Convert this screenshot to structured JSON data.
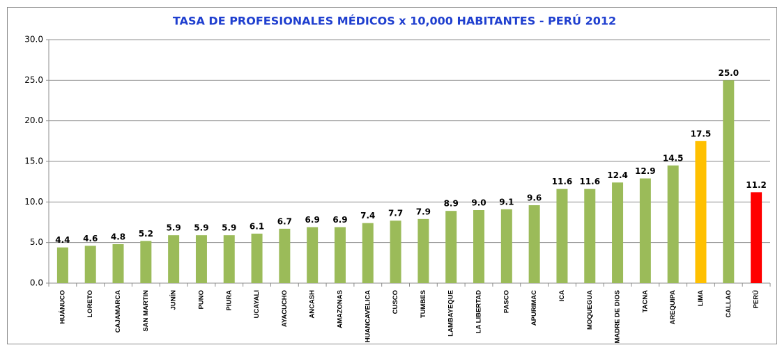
{
  "chart_data": {
    "type": "bar",
    "title": "TASA DE PROFESIONALES MÉDICOS x 10,000 HABITANTES - PERÚ 2012",
    "categories": [
      "HUÁNUCO",
      "LORETO",
      "CAJAMARCA",
      "SAN MARTIN",
      "JUNÍN",
      "PUNO",
      "PIURA",
      "UCAYALI",
      "AYACUCHO",
      "ANCASH",
      "AMAZONAS",
      "HUANCAVELICA",
      "CUSCO",
      "TUMBES",
      "LAMBAYEQUE",
      "LA LIBERTAD",
      "PASCO",
      "APURIMAC",
      "ICA",
      "MOQUEGUA",
      "MADRE DE DIOS",
      "TACNA",
      "AREQUIPA",
      "LIMA",
      "CALLAO",
      "PERÚ"
    ],
    "values": [
      4.4,
      4.6,
      4.8,
      5.2,
      5.9,
      5.9,
      5.9,
      6.1,
      6.7,
      6.9,
      6.9,
      7.4,
      7.7,
      7.9,
      8.9,
      9.0,
      9.1,
      9.6,
      11.6,
      11.6,
      12.4,
      12.9,
      14.5,
      17.5,
      25.0,
      11.2
    ],
    "value_labels": [
      "4.4",
      "4.6",
      "4.8",
      "5.2",
      "5.9",
      "5.9",
      "5.9",
      "6.1",
      "6.7",
      "6.9",
      "6.9",
      "7.4",
      "7.7",
      "7.9",
      "8.9",
      "9.0",
      "9.1",
      "9.6",
      "11.6",
      "11.6",
      "12.4",
      "12.9",
      "14.5",
      "17.5",
      "25.0",
      "11.2"
    ],
    "colors": [
      "#9bbb59",
      "#9bbb59",
      "#9bbb59",
      "#9bbb59",
      "#9bbb59",
      "#9bbb59",
      "#9bbb59",
      "#9bbb59",
      "#9bbb59",
      "#9bbb59",
      "#9bbb59",
      "#9bbb59",
      "#9bbb59",
      "#9bbb59",
      "#9bbb59",
      "#9bbb59",
      "#9bbb59",
      "#9bbb59",
      "#9bbb59",
      "#9bbb59",
      "#9bbb59",
      "#9bbb59",
      "#9bbb59",
      "#ffc000",
      "#9bbb59",
      "#ff0000"
    ],
    "ylim": [
      0,
      30
    ],
    "yticks": [
      {
        "value": 0,
        "label": "0.0"
      },
      {
        "value": 5,
        "label": "5.0"
      },
      {
        "value": 10,
        "label": "10.0"
      },
      {
        "value": 15,
        "label": "15.0"
      },
      {
        "value": 20,
        "label": "20.0"
      },
      {
        "value": 25,
        "label": "25.0"
      },
      {
        "value": 30,
        "label": "30.0"
      }
    ],
    "grid": true
  }
}
